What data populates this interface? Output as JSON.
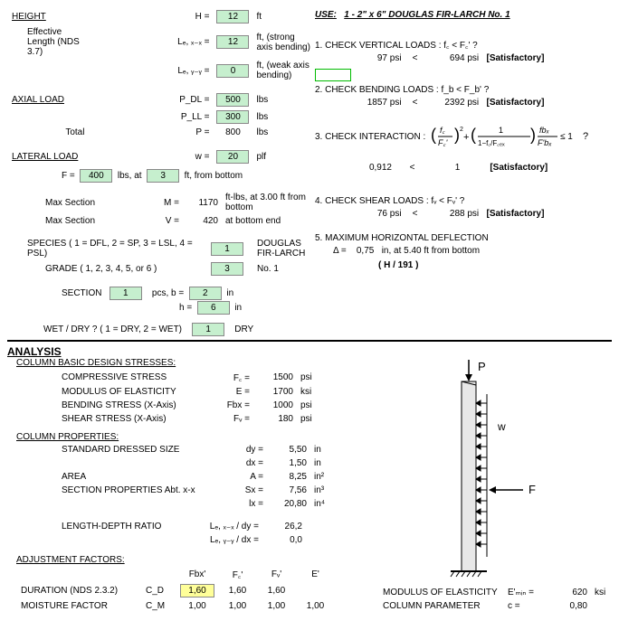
{
  "inputs": {
    "height_label": "HEIGHT",
    "height_sym": "H =",
    "height_val": "12",
    "height_unit": "ft",
    "eff_len_label": "Effective Length (NDS 3.7)",
    "lex_sym": "Lₑ, ₓ₋ₓ =",
    "lex_val": "12",
    "lex_unit": "ft, (strong axis bending)",
    "ley_sym": "Lₑ, ᵧ₋ᵧ =",
    "ley_val": "0",
    "ley_unit": "ft, (weak axis bending)",
    "axial_label": "AXIAL LOAD",
    "pdl_sym": "P_DL =",
    "pdl_val": "500",
    "pdl_unit": "lbs",
    "pll_sym": "P_LL =",
    "pll_val": "300",
    "pll_unit": "lbs",
    "ptot_lbl": "Total",
    "ptot_sym": "P =",
    "ptot_val": "800",
    "ptot_unit": "lbs",
    "lateral_label": "LATERAL LOAD",
    "w_sym": "w =",
    "w_val": "20",
    "w_unit": "plf",
    "F_sym": "F =",
    "F_val": "400",
    "F_mid": "lbs, at",
    "F_at": "3",
    "F_unit": "ft, from bottom",
    "maxsec1": "Max Section",
    "M_sym": "M =",
    "M_val": "1170",
    "M_unit": "ft-lbs, at 3.00 ft from bottom",
    "V_sym": "V =",
    "V_val": "420",
    "V_unit": "at bottom end",
    "species_lbl": "SPECIES ( 1 = DFL, 2 = SP, 3 = LSL, 4 = PSL)",
    "species_val": "1",
    "species_name": "DOUGLAS FIR-LARCH",
    "grade_lbl": "GRADE ( 1, 2, 3, 4, 5, or 6 )",
    "grade_val": "3",
    "grade_name": "No. 1",
    "section_lbl": "SECTION",
    "section_qty": "1",
    "section_txt": "pcs, b =",
    "b_val": "2",
    "b_unit": "in",
    "h_sym": "h =",
    "h_val": "6",
    "h_unit": "in",
    "wetdry_lbl": "WET / DRY ? ( 1 = DRY, 2 = WET)",
    "wetdry_val": "1",
    "wetdry_name": "DRY"
  },
  "use": {
    "label": "USE:",
    "text": "1 - 2\" x 6\"  DOUGLAS FIR-LARCH No. 1"
  },
  "checks": {
    "c1_lbl": "1. CHECK VERTICAL LOADS :  f꜀ < F꜀' ?",
    "c1_l": "97",
    "c1_lu": "psi",
    "c1_m": "<",
    "c1_r": "694",
    "c1_ru": "psi",
    "c1_res": "[Satisfactory]",
    "c2_lbl": "2. CHECK BENDING LOADS :  f_b < F_b' ?",
    "c2_l": "1857",
    "c2_lu": "psi",
    "c2_m": "<",
    "c2_r": "2392",
    "c2_ru": "psi",
    "c2_res": "[Satisfactory]",
    "c3_lbl": "3. CHECK INTERACTION :",
    "c3_l": "0,912",
    "c3_m": "<",
    "c3_r": "1",
    "c3_res": "[Satisfactory]",
    "c4_lbl": "4. CHECK SHEAR LOADS :  fᵥ < Fᵥ' ?",
    "c4_l": "76",
    "c4_lu": "psi",
    "c4_m": "<",
    "c4_r": "288",
    "c4_ru": "psi",
    "c4_res": "[Satisfactory]",
    "c5_lbl": "5. MAXIMUM HORIZONTAL DEFLECTION",
    "c5_sym": "Δ =",
    "c5_val": "0,75",
    "c5_unit": "in, at 5.40 ft from bottom",
    "c5_frac": "(    H / 191    )"
  },
  "analysis": {
    "title": "ANALYSIS",
    "basic_title": "COLUMN BASIC DESIGN STRESSES:",
    "rows_basic": [
      {
        "lbl": "COMPRESSIVE STRESS",
        "sym": "F꜀ =",
        "val": "1500",
        "u": "psi"
      },
      {
        "lbl": "MODULUS OF ELASTICITY",
        "sym": "E =",
        "val": "1700",
        "u": "ksi"
      },
      {
        "lbl": "BENDING STRESS (X-Axis)",
        "sym": "Fbx =",
        "val": "1000",
        "u": "psi"
      },
      {
        "lbl": "SHEAR STRESS (X-Axis)",
        "sym": "Fᵥ =",
        "val": "180",
        "u": "psi"
      }
    ],
    "prop_title": "COLUMN PROPERTIES:",
    "rows_prop": [
      {
        "lbl": "STANDARD DRESSED SIZE",
        "sym": "dy =",
        "val": "5,50",
        "u": "in"
      },
      {
        "lbl": "",
        "sym": "dx =",
        "val": "1,50",
        "u": "in"
      },
      {
        "lbl": "AREA",
        "sym": "A =",
        "val": "8,25",
        "u": "in²"
      },
      {
        "lbl": "SECTION PROPERTIES    Abt. x-x",
        "sym": "Sx =",
        "val": "7,56",
        "u": "in³"
      },
      {
        "lbl": "",
        "sym": "lx =",
        "val": "20,80",
        "u": "in⁴"
      }
    ],
    "ldr_lbl": "LENGTH-DEPTH RATIO",
    "ldr1_sym": "Lₑ, ₓ₋ₓ / dy =",
    "ldr1_val": "26,2",
    "ldr2_sym": "Lₑ, ᵧ₋ᵧ / dx =",
    "ldr2_val": "0,0",
    "adj_title": "ADJUSTMENT FACTORS:",
    "adj_hdr": [
      "Fbx'",
      "F꜀'",
      "Fᵥ'",
      "E'"
    ],
    "adj_rows": [
      {
        "lbl": "DURATION (NDS 2.3.2)",
        "sym": "C_D",
        "v": [
          "1,60",
          "1,60",
          "1,60",
          ""
        ]
      },
      {
        "lbl": "MOISTURE FACTOR",
        "sym": "C_M",
        "v": [
          "1,00",
          "1,00",
          "1,00",
          "1,00"
        ]
      }
    ],
    "emin_lbl": "MODULUS OF ELASTICITY",
    "emin_sym": "E'ₘᵢₙ =",
    "emin_val": "620",
    "emin_u": "ksi",
    "colparam_lbl": "COLUMN PARAMETER",
    "colparam_sym": "c =",
    "colparam_val": "0,80"
  },
  "diagram": {
    "P": "P",
    "w": "w",
    "F": "F"
  }
}
